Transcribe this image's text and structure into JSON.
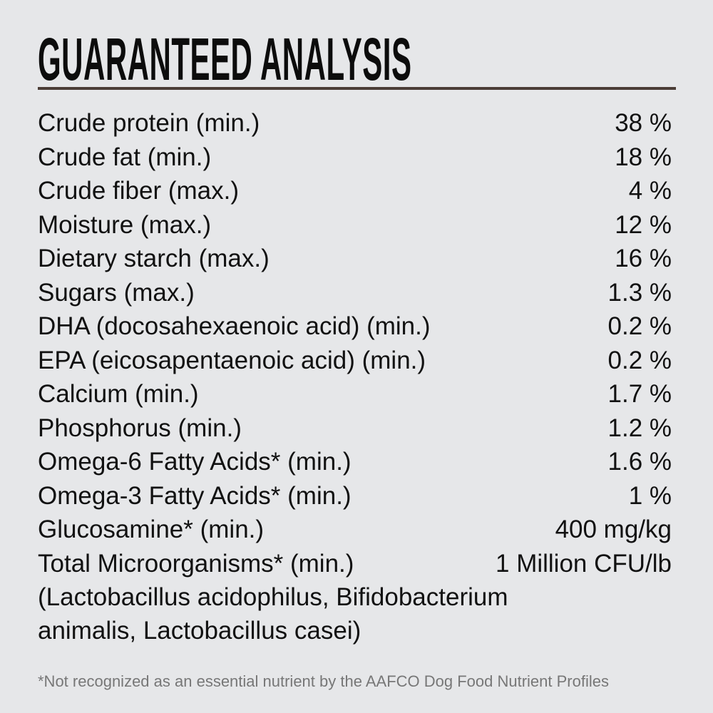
{
  "title": "GUARANTEED ANALYSIS",
  "colors": {
    "background": "#e6e7e9",
    "rule": "#4b3d37",
    "text": "#111111",
    "footnote": "#777777"
  },
  "rows": [
    {
      "label": "Crude protein (min.)",
      "value": "38 %"
    },
    {
      "label": "Crude fat (min.)",
      "value": "18 %"
    },
    {
      "label": "Crude fiber (max.)",
      "value": "4 %"
    },
    {
      "label": "Moisture (max.)",
      "value": "12 %"
    },
    {
      "label": "Dietary starch (max.)",
      "value": "16 %"
    },
    {
      "label": "Sugars (max.)",
      "value": "1.3 %"
    },
    {
      "label": "DHA (docosahexaenoic acid) (min.)",
      "value": "0.2 %"
    },
    {
      "label": "EPA (eicosapentaenoic acid) (min.)",
      "value": "0.2 %"
    },
    {
      "label": "Calcium (min.)",
      "value": "1.7 %"
    },
    {
      "label": "Phosphorus (min.)",
      "value": "1.2 %"
    },
    {
      "label": "Omega-6 Fatty Acids* (min.)",
      "value": "1.6 %"
    },
    {
      "label": "Omega-3 Fatty Acids* (min.)",
      "value": "1 %"
    },
    {
      "label": "Glucosamine* (min.)",
      "value": "400 mg/kg"
    },
    {
      "label": "Total Microorganisms* (min.)",
      "value": "1 Million CFU/lb"
    }
  ],
  "microorganisms_note": [
    "(Lactobacillus acidophilus, Bifidobacterium",
    "animalis, Lactobacillus casei)"
  ],
  "footnote": "*Not recognized as an essential nutrient by the AAFCO Dog Food Nutrient Profiles"
}
